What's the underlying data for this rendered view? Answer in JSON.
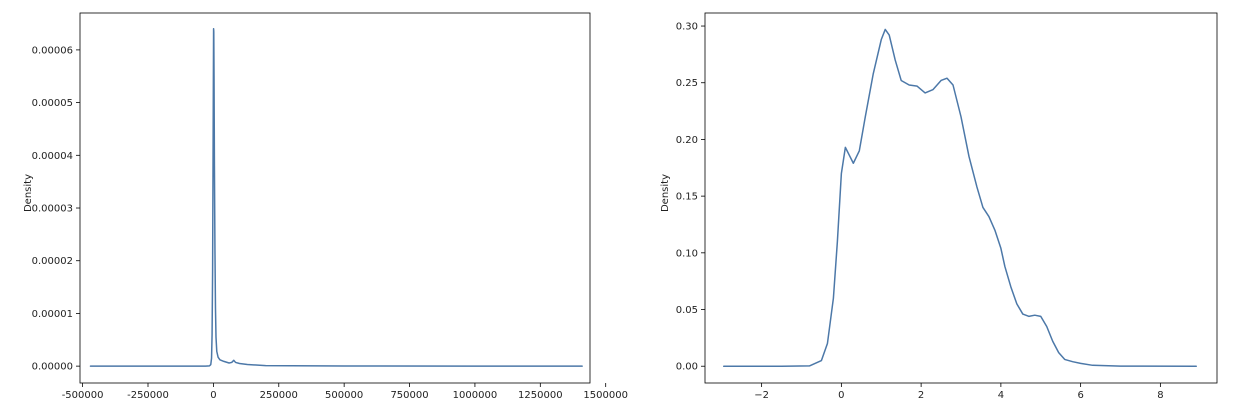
{
  "chart_data": [
    {
      "type": "line",
      "title": "",
      "xlabel": "",
      "ylabel": "Density",
      "xlim": [
        -510000,
        1440000
      ],
      "ylim": [
        -3.2e-06,
        6.7e-05
      ],
      "grid": false,
      "line_color": "#4c78a8",
      "x_ticks": [
        -500000,
        -250000,
        0,
        250000,
        500000,
        750000,
        1000000,
        1250000,
        1500000
      ],
      "x_tick_labels": [
        "-500000",
        "-250000",
        "0",
        "250000",
        "500000",
        "750000",
        "1000000",
        "1250000",
        "1500000"
      ],
      "y_ticks": [
        0,
        1e-05,
        2e-05,
        3e-05,
        4e-05,
        5e-05,
        6e-05
      ],
      "y_tick_labels": [
        "0.00000",
        "0.00001",
        "0.00002",
        "0.00003",
        "0.00004",
        "0.00005",
        "0.00006"
      ],
      "series": [
        {
          "x": [
            -470000,
            -100000,
            -30000,
            -15000,
            -10000,
            -7000,
            -5000,
            -3000,
            -1500,
            0,
            800,
            1500,
            2500,
            4000,
            6000,
            8000,
            10000,
            13000,
            18000,
            25000,
            40000,
            60000,
            70000,
            78000,
            85000,
            100000,
            130000,
            200000,
            500000,
            1000000,
            1410000
          ],
          "y": [
            0,
            0,
            0,
            5e-08,
            3e-07,
            1.5e-06,
            6e-06,
            1.8e-05,
            3.6e-05,
            5.5e-05,
            6.4e-05,
            6.35e-05,
            5.5e-05,
            3.8e-05,
            2.2e-05,
            1.1e-05,
            5.5e-06,
            2.8e-06,
            1.7e-06,
            1.2e-06,
            9e-07,
            6e-07,
            7e-07,
            1.1e-06,
            7e-07,
            5e-07,
            3e-07,
            1e-07,
            2e-08,
            0,
            0
          ]
        }
      ]
    },
    {
      "type": "line",
      "title": "",
      "xlabel": "",
      "ylabel": "Density",
      "xlim": [
        -3.42,
        9.42
      ],
      "ylim": [
        -0.0148,
        0.3115
      ],
      "grid": false,
      "line_color": "#4c78a8",
      "x_ticks": [
        -2,
        0,
        2,
        4,
        6,
        8
      ],
      "x_tick_labels": [
        "−2",
        "0",
        "2",
        "4",
        "6",
        "8"
      ],
      "y_ticks": [
        0,
        0.05,
        0.1,
        0.15,
        0.2,
        0.25,
        0.3
      ],
      "y_tick_labels": [
        "0.00",
        "0.05",
        "0.10",
        "0.15",
        "0.20",
        "0.25",
        "0.30"
      ],
      "series": [
        {
          "x": [
            -2.95,
            -1.5,
            -0.8,
            -0.5,
            -0.35,
            -0.2,
            -0.1,
            0,
            0.1,
            0.2,
            0.3,
            0.45,
            0.6,
            0.8,
            1.0,
            1.1,
            1.2,
            1.35,
            1.5,
            1.7,
            1.9,
            2.1,
            2.3,
            2.5,
            2.65,
            2.8,
            3.0,
            3.2,
            3.4,
            3.55,
            3.7,
            3.85,
            4.0,
            4.1,
            4.25,
            4.4,
            4.55,
            4.7,
            4.85,
            5.0,
            5.15,
            5.3,
            5.45,
            5.6,
            5.8,
            6.0,
            6.3,
            7.0,
            8.9
          ],
          "y": [
            0,
            0,
            0.0003,
            0.005,
            0.02,
            0.06,
            0.11,
            0.17,
            0.193,
            0.186,
            0.179,
            0.19,
            0.22,
            0.258,
            0.288,
            0.297,
            0.292,
            0.27,
            0.252,
            0.248,
            0.247,
            0.241,
            0.244,
            0.252,
            0.254,
            0.248,
            0.22,
            0.185,
            0.158,
            0.14,
            0.132,
            0.12,
            0.104,
            0.088,
            0.07,
            0.055,
            0.046,
            0.044,
            0.045,
            0.044,
            0.035,
            0.022,
            0.012,
            0.006,
            0.004,
            0.0025,
            0.0008,
            0.0001,
            0
          ]
        }
      ]
    }
  ]
}
